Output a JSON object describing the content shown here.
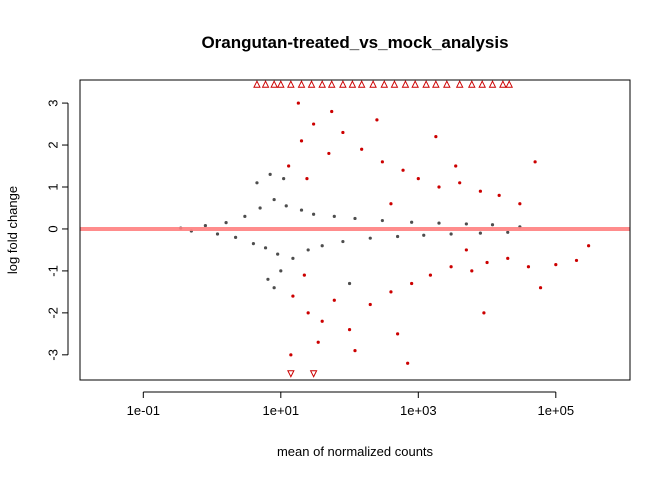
{
  "chart_data": {
    "type": "scatter",
    "title": "Orangutan-treated_vs_mock_analysis",
    "xlabel": "mean of normalized counts",
    "ylabel": "log fold change",
    "x_scale": "log10",
    "xlim": [
      0.012,
      1200000
    ],
    "ylim": [
      -3.6,
      3.55
    ],
    "x_ticks": [
      0.1,
      10,
      1000,
      100000
    ],
    "x_tick_labels": [
      "1e-01",
      "1e+01",
      "1e+03",
      "1e+05"
    ],
    "y_ticks": [
      -3,
      -2,
      -1,
      0,
      1,
      2,
      3
    ],
    "y_tick_labels": [
      "-3",
      "-2",
      "-1",
      "0",
      "1",
      "2",
      "3"
    ],
    "grid": false,
    "reference_line": {
      "y": 0,
      "color": "#ff7f7f"
    },
    "colors": {
      "not_significant": "#4d4d4d",
      "significant": "#cc0000",
      "reference_line": "#ff7f7f"
    },
    "series": [
      {
        "points": [
          [
            0.35,
            0.02
          ],
          [
            0.5,
            -0.05
          ],
          [
            0.8,
            0.08
          ],
          [
            1.2,
            -0.12
          ],
          [
            1.6,
            0.15
          ],
          [
            2.2,
            -0.2
          ],
          [
            3.0,
            0.3
          ],
          [
            4.0,
            -0.35
          ],
          [
            5.0,
            0.5
          ],
          [
            6.0,
            -0.45
          ],
          [
            8.0,
            0.7
          ],
          [
            9.0,
            -0.6
          ],
          [
            12,
            0.55
          ],
          [
            15,
            -0.7
          ],
          [
            20,
            0.45
          ],
          [
            25,
            -0.5
          ],
          [
            30,
            0.35
          ],
          [
            40,
            -0.4
          ],
          [
            60,
            0.3
          ],
          [
            80,
            -0.3
          ],
          [
            120,
            0.25
          ],
          [
            200,
            -0.22
          ],
          [
            300,
            0.2
          ],
          [
            500,
            -0.18
          ],
          [
            800,
            0.16
          ],
          [
            1200,
            -0.15
          ],
          [
            2000,
            0.14
          ],
          [
            3000,
            -0.12
          ],
          [
            5000,
            0.12
          ],
          [
            8000,
            -0.1
          ],
          [
            12000,
            0.1
          ],
          [
            20000,
            -0.08
          ],
          [
            30000,
            0.05
          ],
          [
            4.5,
            1.1
          ],
          [
            6.5,
            -1.2
          ],
          [
            7.0,
            1.3
          ],
          [
            10,
            -1.0
          ],
          [
            11,
            1.2
          ],
          [
            100,
            -1.3
          ],
          [
            8,
            -1.4
          ]
        ]
      },
      {
        "points": [
          [
            13,
            1.5
          ],
          [
            15,
            -1.6
          ],
          [
            20,
            2.1
          ],
          [
            25,
            -2.0
          ],
          [
            30,
            2.5
          ],
          [
            40,
            -2.2
          ],
          [
            50,
            1.8
          ],
          [
            60,
            -1.7
          ],
          [
            80,
            2.3
          ],
          [
            100,
            -2.4
          ],
          [
            150,
            1.9
          ],
          [
            200,
            -1.8
          ],
          [
            300,
            1.6
          ],
          [
            400,
            -1.5
          ],
          [
            600,
            1.4
          ],
          [
            800,
            -1.3
          ],
          [
            1000,
            1.2
          ],
          [
            1500,
            -1.1
          ],
          [
            2000,
            1.0
          ],
          [
            3000,
            -0.9
          ],
          [
            4000,
            1.1
          ],
          [
            6000,
            -1.0
          ],
          [
            8000,
            0.9
          ],
          [
            10000,
            -0.8
          ],
          [
            15000,
            0.8
          ],
          [
            20000,
            -0.7
          ],
          [
            30000,
            0.6
          ],
          [
            40000,
            -0.9
          ],
          [
            50000,
            1.6
          ],
          [
            60000,
            -1.4
          ],
          [
            100000,
            -0.85
          ],
          [
            200000,
            -0.75
          ],
          [
            300000,
            -0.4
          ],
          [
            18,
            3.0
          ],
          [
            35,
            -2.7
          ],
          [
            55,
            2.8
          ],
          [
            120,
            -2.9
          ],
          [
            250,
            2.6
          ],
          [
            500,
            -2.5
          ],
          [
            1800,
            2.2
          ],
          [
            9000,
            -2.0
          ],
          [
            14,
            -3.0
          ],
          [
            700,
            -3.2
          ],
          [
            24,
            1.2
          ],
          [
            400,
            0.6
          ],
          [
            5000,
            -0.5
          ],
          [
            22,
            -1.1
          ],
          [
            3500,
            1.5
          ]
        ]
      },
      {
        "marker": "triangle",
        "points": [
          [
            4.5,
            3.45
          ],
          [
            6,
            3.45
          ],
          [
            8,
            3.45
          ],
          [
            10,
            3.45
          ],
          [
            14,
            3.45
          ],
          [
            20,
            3.45
          ],
          [
            28,
            3.45
          ],
          [
            40,
            3.45
          ],
          [
            55,
            3.45
          ],
          [
            80,
            3.45
          ],
          [
            110,
            3.45
          ],
          [
            150,
            3.45
          ],
          [
            220,
            3.45
          ],
          [
            320,
            3.45
          ],
          [
            450,
            3.45
          ],
          [
            650,
            3.45
          ],
          [
            900,
            3.45
          ],
          [
            1300,
            3.45
          ],
          [
            1800,
            3.45
          ],
          [
            2600,
            3.45
          ],
          [
            4000,
            3.45
          ],
          [
            6000,
            3.45
          ],
          [
            8500,
            3.45
          ],
          [
            12000,
            3.45
          ],
          [
            17000,
            3.45
          ],
          [
            21000,
            3.45
          ],
          [
            14,
            -3.45
          ],
          [
            30,
            -3.45
          ]
        ]
      }
    ]
  }
}
